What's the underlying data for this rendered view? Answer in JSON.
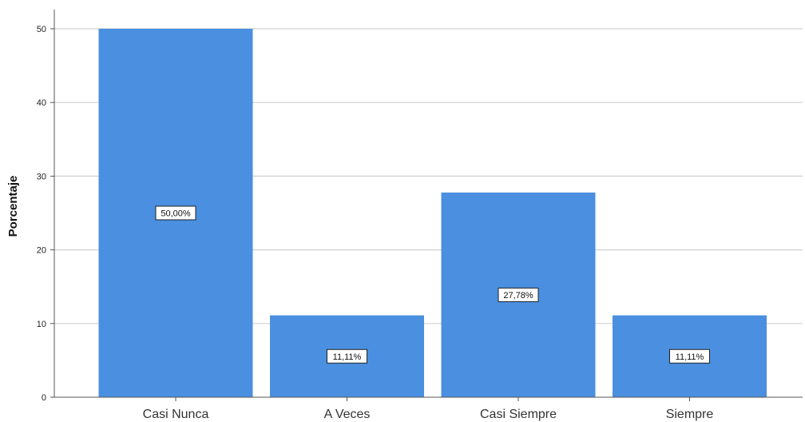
{
  "chart_data": {
    "type": "bar",
    "categories": [
      "Casi Nunca",
      "A Veces",
      "Casi Siempre",
      "Siempre"
    ],
    "values": [
      50.0,
      11.11,
      27.78,
      11.11
    ],
    "data_labels": [
      "50,00%",
      "11,11%",
      "27,78%",
      "11,11%"
    ],
    "title": "",
    "xlabel": "",
    "ylabel": "Porcentaje",
    "ylim": [
      0,
      52
    ],
    "yticks": [
      0,
      10,
      20,
      30,
      40,
      50
    ],
    "grid": true,
    "colors": {
      "bar": "#4a8fe0",
      "grid": "#d0d0d0",
      "axis": "#555555",
      "background": "#ffffff"
    }
  }
}
